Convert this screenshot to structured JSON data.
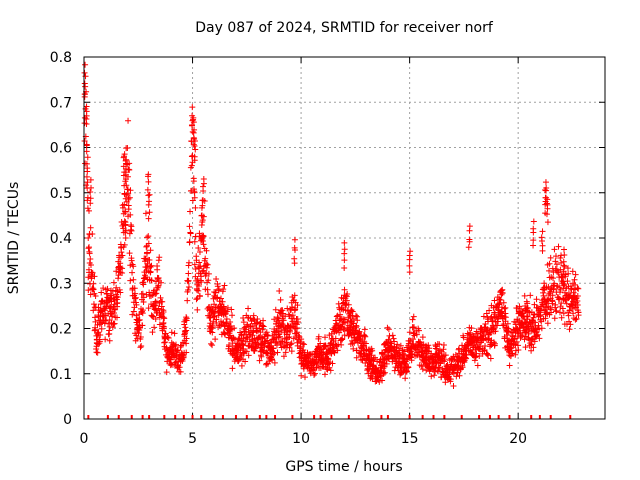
{
  "chart_data": {
    "type": "scatter",
    "title": "Day 087 of 2024, SRMTID for receiver norf",
    "xlabel": "GPS time / hours",
    "ylabel": "SRMTID / TECUs",
    "xlim": [
      0,
      24
    ],
    "ylim": [
      0,
      0.8
    ],
    "x_ticks": [
      0,
      5,
      10,
      15,
      20
    ],
    "x_tick_labels": [
      "0",
      "5",
      "10",
      "15",
      "20"
    ],
    "y_ticks": [
      0,
      0.1,
      0.2,
      0.3,
      0.4,
      0.5,
      0.6,
      0.7,
      0.8
    ],
    "y_tick_labels": [
      "0",
      "0.1",
      "0.2",
      "0.3",
      "0.4",
      "0.5",
      "0.6",
      "0.7",
      "0.8"
    ],
    "grid": true,
    "marker": "+",
    "series_color": "#ff0000",
    "profile": [
      {
        "x": 0.0,
        "y": 0.74
      },
      {
        "x": 0.1,
        "y": 0.62
      },
      {
        "x": 0.2,
        "y": 0.4
      },
      {
        "x": 0.4,
        "y": 0.3
      },
      {
        "x": 0.6,
        "y": 0.16
      },
      {
        "x": 0.8,
        "y": 0.24
      },
      {
        "x": 1.0,
        "y": 0.26
      },
      {
        "x": 1.3,
        "y": 0.24
      },
      {
        "x": 1.6,
        "y": 0.3
      },
      {
        "x": 1.8,
        "y": 0.42
      },
      {
        "x": 2.0,
        "y": 0.55
      },
      {
        "x": 2.3,
        "y": 0.24
      },
      {
        "x": 2.6,
        "y": 0.2
      },
      {
        "x": 2.9,
        "y": 0.38
      },
      {
        "x": 3.2,
        "y": 0.24
      },
      {
        "x": 3.5,
        "y": 0.3
      },
      {
        "x": 3.8,
        "y": 0.14
      },
      {
        "x": 4.1,
        "y": 0.16
      },
      {
        "x": 4.4,
        "y": 0.12
      },
      {
        "x": 4.7,
        "y": 0.2
      },
      {
        "x": 5.0,
        "y": 0.6
      },
      {
        "x": 5.2,
        "y": 0.3
      },
      {
        "x": 5.5,
        "y": 0.4
      },
      {
        "x": 5.8,
        "y": 0.22
      },
      {
        "x": 6.2,
        "y": 0.26
      },
      {
        "x": 6.6,
        "y": 0.22
      },
      {
        "x": 7.0,
        "y": 0.14
      },
      {
        "x": 7.4,
        "y": 0.18
      },
      {
        "x": 7.8,
        "y": 0.2
      },
      {
        "x": 8.2,
        "y": 0.18
      },
      {
        "x": 8.6,
        "y": 0.14
      },
      {
        "x": 9.0,
        "y": 0.22
      },
      {
        "x": 9.3,
        "y": 0.18
      },
      {
        "x": 9.7,
        "y": 0.24
      },
      {
        "x": 10.0,
        "y": 0.14
      },
      {
        "x": 10.4,
        "y": 0.12
      },
      {
        "x": 10.8,
        "y": 0.14
      },
      {
        "x": 11.2,
        "y": 0.14
      },
      {
        "x": 11.6,
        "y": 0.18
      },
      {
        "x": 12.0,
        "y": 0.24
      },
      {
        "x": 12.4,
        "y": 0.2
      },
      {
        "x": 12.8,
        "y": 0.16
      },
      {
        "x": 13.2,
        "y": 0.12
      },
      {
        "x": 13.6,
        "y": 0.1
      },
      {
        "x": 14.0,
        "y": 0.16
      },
      {
        "x": 14.4,
        "y": 0.14
      },
      {
        "x": 14.8,
        "y": 0.12
      },
      {
        "x": 15.2,
        "y": 0.18
      },
      {
        "x": 15.6,
        "y": 0.14
      },
      {
        "x": 16.0,
        "y": 0.12
      },
      {
        "x": 16.4,
        "y": 0.14
      },
      {
        "x": 16.8,
        "y": 0.1
      },
      {
        "x": 17.2,
        "y": 0.12
      },
      {
        "x": 17.6,
        "y": 0.16
      },
      {
        "x": 18.0,
        "y": 0.16
      },
      {
        "x": 18.4,
        "y": 0.18
      },
      {
        "x": 18.8,
        "y": 0.2
      },
      {
        "x": 19.2,
        "y": 0.24
      },
      {
        "x": 19.6,
        "y": 0.16
      },
      {
        "x": 20.0,
        "y": 0.2
      },
      {
        "x": 20.4,
        "y": 0.22
      },
      {
        "x": 20.8,
        "y": 0.2
      },
      {
        "x": 21.2,
        "y": 0.26
      },
      {
        "x": 21.6,
        "y": 0.3
      },
      {
        "x": 22.0,
        "y": 0.3
      },
      {
        "x": 22.4,
        "y": 0.26
      },
      {
        "x": 22.8,
        "y": 0.26
      }
    ],
    "spikes": [
      {
        "x": 0.05,
        "y": 0.76
      },
      {
        "x": 0.1,
        "y": 0.7
      },
      {
        "x": 0.15,
        "y": 0.58
      },
      {
        "x": 0.3,
        "y": 0.53
      },
      {
        "x": 1.85,
        "y": 0.59
      },
      {
        "x": 1.95,
        "y": 0.57
      },
      {
        "x": 2.05,
        "y": 0.5
      },
      {
        "x": 1.9,
        "y": 0.44
      },
      {
        "x": 2.95,
        "y": 0.55
      },
      {
        "x": 3.0,
        "y": 0.5
      },
      {
        "x": 5.0,
        "y": 0.69
      },
      {
        "x": 5.05,
        "y": 0.66
      },
      {
        "x": 5.1,
        "y": 0.62
      },
      {
        "x": 5.5,
        "y": 0.54
      },
      {
        "x": 5.45,
        "y": 0.48
      },
      {
        "x": 9.7,
        "y": 0.4
      },
      {
        "x": 12.0,
        "y": 0.39
      },
      {
        "x": 15.0,
        "y": 0.38
      },
      {
        "x": 17.75,
        "y": 0.43
      },
      {
        "x": 20.7,
        "y": 0.44
      },
      {
        "x": 21.3,
        "y": 0.53
      },
      {
        "x": 21.25,
        "y": 0.51
      },
      {
        "x": 21.35,
        "y": 0.49
      },
      {
        "x": 21.1,
        "y": 0.42
      },
      {
        "x": 22.1,
        "y": 0.38
      }
    ],
    "zero_markers_x": [
      0.2,
      1.1,
      1.6,
      2.2,
      2.7,
      3.0,
      3.7,
      4.2,
      4.6,
      5.0,
      5.4,
      6.0,
      6.4,
      7.0,
      7.5,
      8.1,
      8.4,
      8.8,
      9.6,
      10.6,
      10.9,
      11.4,
      12.2,
      13.1,
      13.7,
      14.0,
      15.0,
      15.6,
      16.1,
      16.6,
      17.4,
      18.2,
      18.7,
      19.1,
      19.6,
      20.6,
      21.0,
      21.5,
      22.4
    ]
  }
}
